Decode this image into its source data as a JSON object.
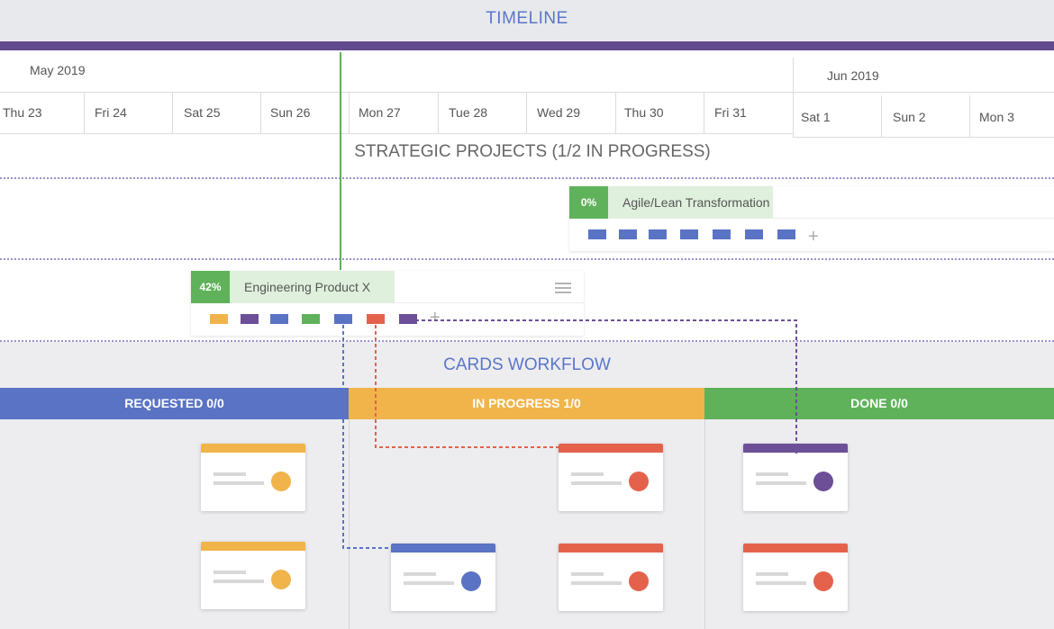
{
  "header": {
    "title": "TIMELINE"
  },
  "timeline": {
    "months": [
      "May 2019",
      "Jun 2019"
    ],
    "days": [
      "Thu 23",
      "Fri 24",
      "Sat 25",
      "Sun 26",
      "Mon 27",
      "Tue 28",
      "Wed 29",
      "Thu 30",
      "Fri 31",
      "Sat 1",
      "Sun 2",
      "Mon 3"
    ]
  },
  "strategic": {
    "heading": "STRATEGIC PROJECTS (1/2 IN PROGRESS)",
    "projects": [
      {
        "percent": "0%",
        "name": "Agile/Lean Transformation",
        "chip_colors": [
          "#5a73c4",
          "#5a73c4",
          "#5a73c4",
          "#5a73c4",
          "#5a73c4",
          "#5a73c4",
          "#5a73c4"
        ]
      },
      {
        "percent": "42%",
        "name": "Engineering Product X",
        "chip_colors": [
          "#f0b44a",
          "#6d4f98",
          "#5a73c4",
          "#5fb25a",
          "#5a73c4",
          "#e4624c",
          "#6d4f98"
        ]
      }
    ],
    "add_symbol": "+"
  },
  "workflow": {
    "heading": "CARDS WORKFLOW",
    "columns": [
      {
        "label": "REQUESTED 0/0",
        "color": "#5a73c4"
      },
      {
        "label": "IN PROGRESS 1/0",
        "color": "#f0b44a"
      },
      {
        "label": "DONE 0/0",
        "color": "#5fb25a"
      }
    ],
    "cards": [
      {
        "column": "requested",
        "color": "#f0b44a"
      },
      {
        "column": "requested",
        "color": "#f0b44a"
      },
      {
        "column": "in-progress",
        "color": "#5a73c4"
      },
      {
        "column": "in-progress",
        "color": "#e4624c"
      },
      {
        "column": "in-progress",
        "color": "#e4624c"
      },
      {
        "column": "done",
        "color": "#6d4f98"
      },
      {
        "column": "done",
        "color": "#e4624c"
      }
    ]
  },
  "colors": {
    "accent": "#5b76c8",
    "today_line": "#5fb25a",
    "header_rule": "#614a8e",
    "dotted_divider": "#9b90cf"
  },
  "icons": [
    "menu-icon",
    "plus-icon"
  ]
}
